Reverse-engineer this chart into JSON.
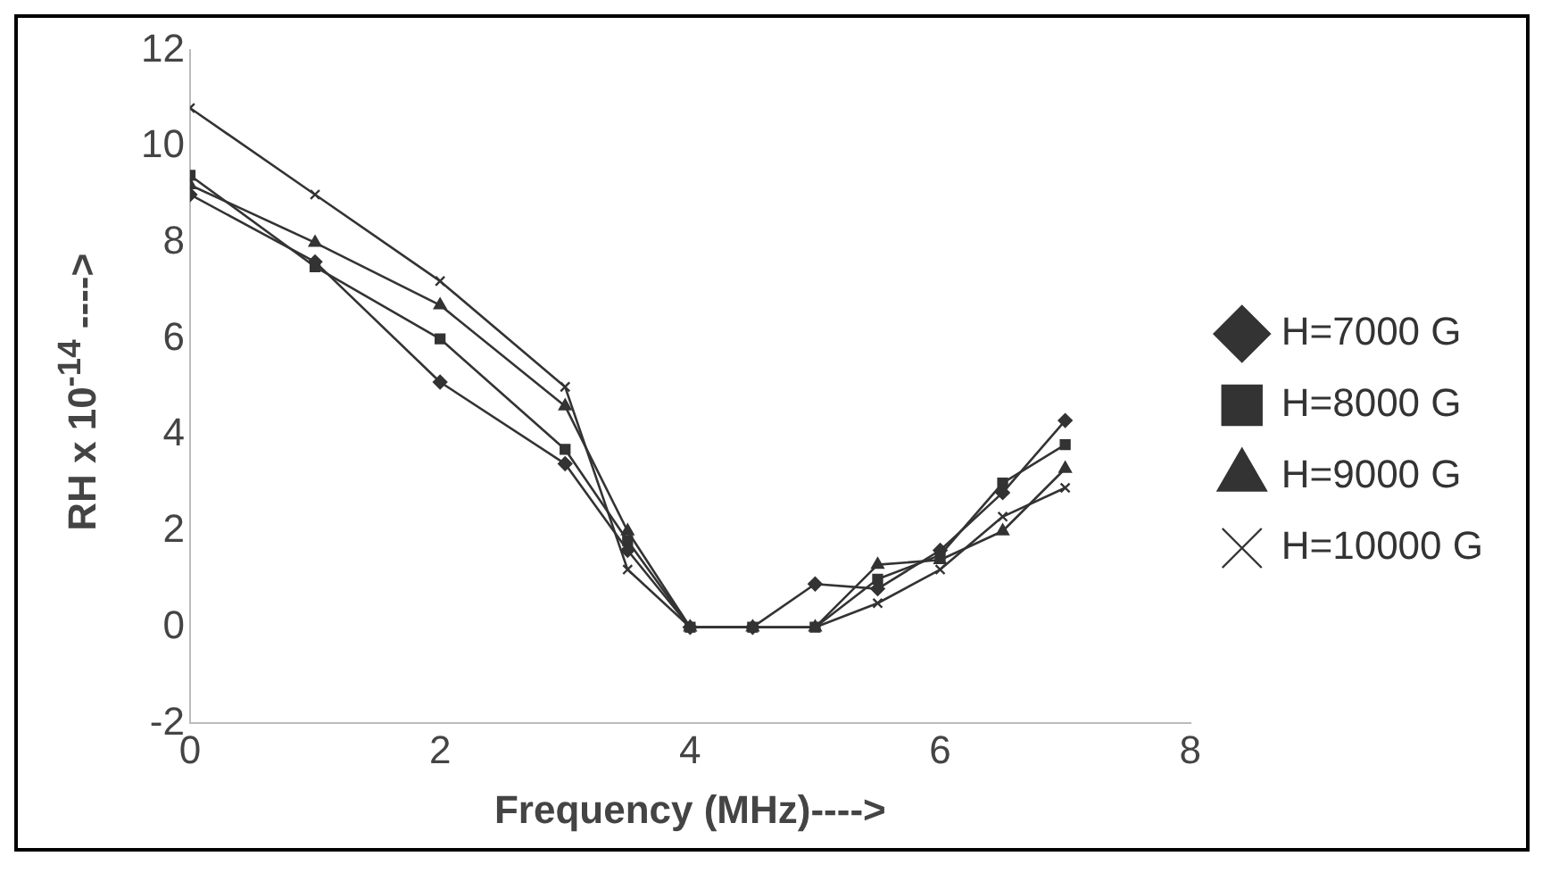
{
  "chart_data": {
    "type": "line",
    "xlabel": "Frequency (MHz)---->",
    "ylabel": "RH x 10$^{-14}$ ---->",
    "xlim": [
      0,
      8
    ],
    "xticks": [
      0,
      2,
      4,
      6,
      8
    ],
    "ylim": [
      -2,
      12
    ],
    "yticks": [
      -2,
      0,
      2,
      4,
      6,
      8,
      10,
      12
    ],
    "grid": false,
    "legend": "right",
    "x": [
      0,
      1,
      2,
      3,
      3.5,
      4,
      4.5,
      5,
      5.5,
      6,
      6.5,
      7
    ],
    "series": [
      {
        "name": "H=7000 G",
        "color": "#333333",
        "marker": "diamond",
        "values": [
          9.0,
          7.6,
          5.1,
          3.4,
          1.6,
          0,
          0,
          0.9,
          0.8,
          1.6,
          2.8,
          4.3
        ]
      },
      {
        "name": "H=8000 G",
        "color": "#333333",
        "marker": "square",
        "values": [
          9.4,
          7.5,
          6.0,
          3.7,
          1.8,
          0,
          0,
          0,
          1.0,
          1.5,
          3.0,
          3.8
        ]
      },
      {
        "name": "H=9000 G",
        "color": "#333333",
        "marker": "triangle",
        "values": [
          9.2,
          8.0,
          6.7,
          4.6,
          2.0,
          0,
          0,
          0,
          1.3,
          1.4,
          2.0,
          3.3
        ]
      },
      {
        "name": "H=10000 G",
        "color": "#333333",
        "marker": "cross",
        "values": [
          10.8,
          9.0,
          7.2,
          5.0,
          1.2,
          0,
          0,
          0,
          0.5,
          1.2,
          2.3,
          2.9
        ]
      }
    ]
  }
}
